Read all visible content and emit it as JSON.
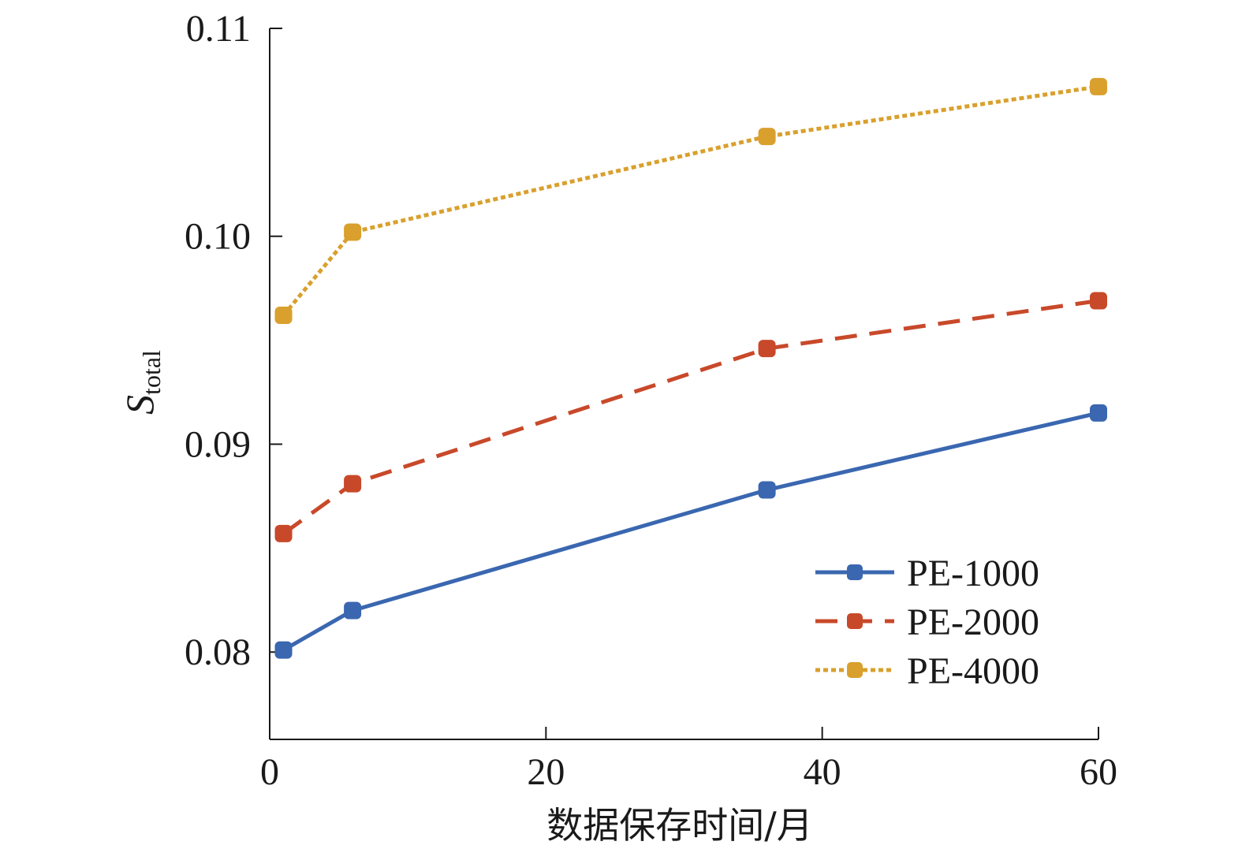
{
  "chart_data": {
    "type": "line",
    "title": "",
    "xlabel": "数据保存时间/月",
    "ylabel": {
      "main": "S",
      "sub": "total"
    },
    "xlim": [
      0,
      60
    ],
    "ylim": [
      0.0758,
      0.11
    ],
    "x_ticks": [
      0,
      20,
      40,
      60
    ],
    "x_tick_labels": [
      "0",
      "20",
      "40",
      "60"
    ],
    "y_ticks": [
      0.08,
      0.09,
      0.1,
      0.11
    ],
    "y_tick_labels": [
      "0.08",
      "0.09",
      "0.10",
      "0.11"
    ],
    "x": [
      1,
      6,
      36,
      60
    ],
    "legend_position": "bottom-right",
    "series": [
      {
        "name": "PE-1000",
        "values": [
          0.0801,
          0.082,
          0.0878,
          0.0915
        ],
        "color": "#3a67b0",
        "style": "solid"
      },
      {
        "name": "PE-2000",
        "values": [
          0.0857,
          0.0881,
          0.0946,
          0.0969
        ],
        "color": "#c8492a",
        "style": "dashed"
      },
      {
        "name": "PE-4000",
        "values": [
          0.0962,
          0.1002,
          0.1048,
          0.1072
        ],
        "color": "#d9a02e",
        "style": "dotted"
      }
    ]
  }
}
